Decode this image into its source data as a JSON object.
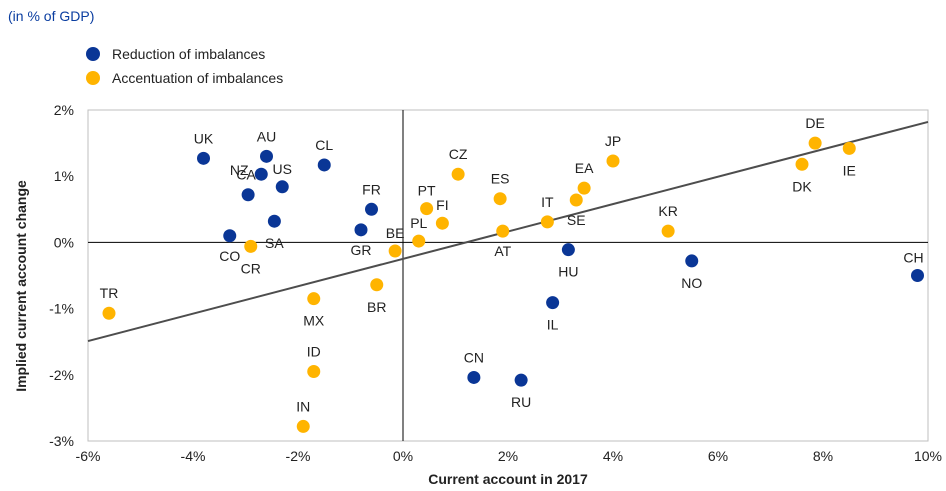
{
  "chart_data": {
    "type": "scatter",
    "subtitle": "(in % of GDP)",
    "xlabel": "Current account in 2017",
    "ylabel": "Implied current account change",
    "xlim": [
      -6,
      10
    ],
    "ylim": [
      -3,
      2
    ],
    "x_ticks": [
      -6,
      -4,
      -2,
      0,
      2,
      4,
      6,
      8,
      10
    ],
    "y_ticks": [
      -3,
      -2,
      -1,
      0,
      1,
      2
    ],
    "x_tick_labels": [
      "-6%",
      "-4%",
      "-2%",
      "0%",
      "2%",
      "4%",
      "6%",
      "8%",
      "10%"
    ],
    "y_tick_labels": [
      "-3%",
      "-2%",
      "-1%",
      "0%",
      "1%",
      "2%"
    ],
    "grid": false,
    "legend_position": "top-left",
    "trendline": {
      "x": [
        -6,
        10
      ],
      "y": [
        -1.49,
        1.82
      ],
      "color": "#4d4d4d"
    },
    "series": [
      {
        "name": "Reduction of imbalances",
        "color": "#0a3696",
        "points": [
          {
            "label": "UK",
            "x": -3.8,
            "y": 1.27
          },
          {
            "label": "AU",
            "x": -2.6,
            "y": 1.3
          },
          {
            "label": "NZ",
            "x": -2.7,
            "y": 1.03
          },
          {
            "label": "US",
            "x": -2.3,
            "y": 0.84
          },
          {
            "label": "CL",
            "x": -1.5,
            "y": 1.17
          },
          {
            "label": "CA",
            "x": -2.95,
            "y": 0.72
          },
          {
            "label": "SA",
            "x": -2.45,
            "y": 0.32
          },
          {
            "label": "CO",
            "x": -3.3,
            "y": 0.1
          },
          {
            "label": "FR",
            "x": -0.6,
            "y": 0.5
          },
          {
            "label": "GR",
            "x": -0.8,
            "y": 0.19
          },
          {
            "label": "HU",
            "x": 3.15,
            "y": -0.11
          },
          {
            "label": "NO",
            "x": 5.5,
            "y": -0.28
          },
          {
            "label": "CH",
            "x": 9.8,
            "y": -0.5
          },
          {
            "label": "IL",
            "x": 2.85,
            "y": -0.91
          },
          {
            "label": "CN",
            "x": 1.35,
            "y": -2.04
          },
          {
            "label": "RU",
            "x": 2.25,
            "y": -2.08
          }
        ]
      },
      {
        "name": "Accentuation of imbalances",
        "color": "#ffb400",
        "points": [
          {
            "label": "TR",
            "x": -5.6,
            "y": -1.07
          },
          {
            "label": "CR",
            "x": -2.9,
            "y": -0.06
          },
          {
            "label": "MX",
            "x": -1.7,
            "y": -0.85
          },
          {
            "label": "ID",
            "x": -1.7,
            "y": -1.95
          },
          {
            "label": "IN",
            "x": -1.9,
            "y": -2.78
          },
          {
            "label": "BR",
            "x": -0.5,
            "y": -0.64
          },
          {
            "label": "BE",
            "x": -0.15,
            "y": -0.13
          },
          {
            "label": "PL",
            "x": 0.3,
            "y": 0.02
          },
          {
            "label": "PT",
            "x": 0.45,
            "y": 0.51
          },
          {
            "label": "FI",
            "x": 0.75,
            "y": 0.29
          },
          {
            "label": "CZ",
            "x": 1.05,
            "y": 1.03
          },
          {
            "label": "ES",
            "x": 1.85,
            "y": 0.66
          },
          {
            "label": "AT",
            "x": 1.9,
            "y": 0.17
          },
          {
            "label": "IT",
            "x": 2.75,
            "y": 0.31
          },
          {
            "label": "SE",
            "x": 3.3,
            "y": 0.64
          },
          {
            "label": "EA",
            "x": 3.45,
            "y": 0.82
          },
          {
            "label": "JP",
            "x": 4.0,
            "y": 1.23
          },
          {
            "label": "KR",
            "x": 5.05,
            "y": 0.17
          },
          {
            "label": "DK",
            "x": 7.6,
            "y": 1.18
          },
          {
            "label": "DE",
            "x": 7.85,
            "y": 1.5
          },
          {
            "label": "IE",
            "x": 8.5,
            "y": 1.42
          }
        ]
      }
    ]
  }
}
